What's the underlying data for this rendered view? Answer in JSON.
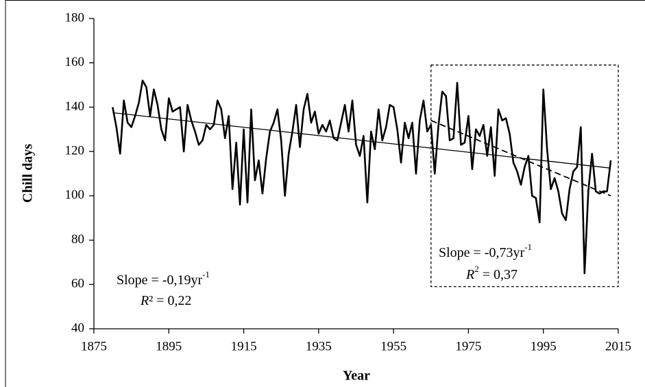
{
  "chart_data": {
    "type": "line",
    "xlabel": "Year",
    "ylabel": "Chill days",
    "xlim": [
      1875,
      2015
    ],
    "xticks": [
      1875,
      1895,
      1915,
      1935,
      1955,
      1975,
      1995,
      2015
    ],
    "ylim": [
      40,
      180
    ],
    "yticks": [
      40,
      60,
      80,
      100,
      120,
      140,
      160,
      180
    ],
    "series": [
      {
        "color": "#000000",
        "style": "solid",
        "width": 2.6,
        "x": [
          1880,
          1881,
          1882,
          1883,
          1884,
          1885,
          1886,
          1887,
          1888,
          1889,
          1890,
          1891,
          1892,
          1893,
          1894,
          1895,
          1896,
          1897,
          1898,
          1899,
          1900,
          1901,
          1902,
          1903,
          1904,
          1905,
          1906,
          1907,
          1908,
          1909,
          1910,
          1911,
          1912,
          1913,
          1914,
          1915,
          1916,
          1917,
          1918,
          1919,
          1920,
          1921,
          1922,
          1923,
          1924,
          1925,
          1926,
          1927,
          1928,
          1929,
          1930,
          1931,
          1932,
          1933,
          1934,
          1935,
          1936,
          1937,
          1938,
          1939,
          1940,
          1941,
          1942,
          1943,
          1944,
          1945,
          1946,
          1947,
          1948,
          1949,
          1950,
          1951,
          1952,
          1953,
          1954,
          1955,
          1956,
          1957,
          1958,
          1959,
          1960,
          1961,
          1962,
          1963,
          1964,
          1965,
          1966,
          1967,
          1968,
          1969,
          1970,
          1971,
          1972,
          1973,
          1974,
          1975,
          1976,
          1977,
          1978,
          1979,
          1980,
          1981,
          1982,
          1983,
          1984,
          1985,
          1986,
          1987,
          1988,
          1989,
          1990,
          1991,
          1992,
          1993,
          1994,
          1995,
          1996,
          1997,
          1998,
          1999,
          2000,
          2001,
          2002,
          2003,
          2004,
          2005,
          2006,
          2007,
          2008,
          2009,
          2010,
          2011,
          2012,
          2013
        ],
        "values": [
          140,
          131,
          119,
          143,
          133,
          131,
          136,
          142,
          152,
          149,
          136,
          148,
          141,
          130,
          125,
          144,
          138,
          139,
          140,
          120,
          141,
          134,
          129,
          123,
          125,
          132,
          130,
          132,
          143,
          139,
          126,
          136,
          103,
          124,
          96,
          130,
          97,
          139,
          107,
          116,
          101,
          117,
          129,
          133,
          139,
          125,
          100,
          119,
          129,
          141,
          122,
          139,
          146,
          133,
          138,
          128,
          132,
          129,
          134,
          126,
          125,
          133,
          141,
          129,
          143,
          123,
          118,
          127,
          97,
          129,
          121,
          139,
          125,
          131,
          141,
          140,
          130,
          115,
          133,
          126,
          133,
          110,
          134,
          143,
          129,
          132,
          110,
          132,
          147,
          145,
          125,
          126,
          151,
          123,
          124,
          136,
          112,
          130,
          127,
          132,
          118,
          131,
          109,
          139,
          134,
          135,
          128,
          115,
          111,
          105,
          113,
          118,
          100,
          99,
          88,
          148,
          121,
          103,
          108,
          102,
          92,
          89,
          103,
          111,
          113,
          131,
          65,
          102,
          119,
          102,
          101,
          102,
          102,
          116
        ]
      },
      {
        "color": "#000000",
        "style": "solid",
        "width": 1.3,
        "x": [
          1880,
          2013
        ],
        "values": [
          137.5,
          112.5
        ]
      },
      {
        "color": "#000000",
        "style": "dashed",
        "width": 1.8,
        "x": [
          1965,
          2013
        ],
        "values": [
          134,
          100
        ]
      }
    ],
    "highlight": {
      "xrange": [
        1965,
        2015
      ],
      "yrange": [
        59,
        159
      ]
    },
    "annotations": [
      {
        "slope": "Slope = -0,19yr",
        "slope_sup": "-1",
        "r_var": "R",
        "r_rest": "² = 0,22"
      },
      {
        "slope": "Slope = -0,73yr",
        "slope_sup": "-1",
        "r_var": "R",
        "r_sup": "2",
        "r_rest": " = 0,37"
      }
    ]
  }
}
